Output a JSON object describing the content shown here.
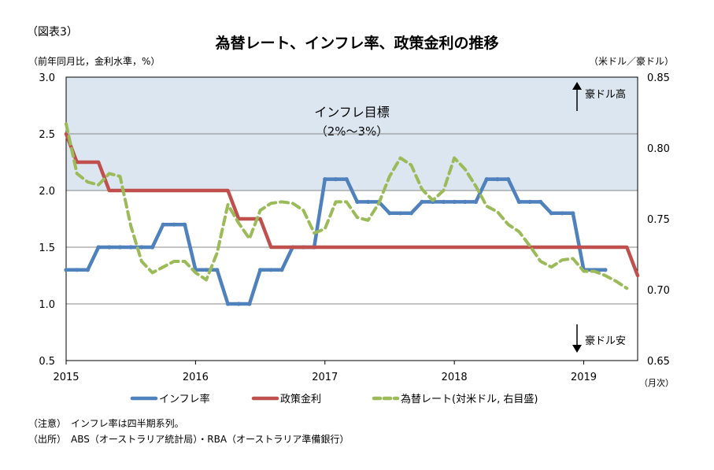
{
  "figure_label": "（図表3）",
  "title": "為替レート、インフレ率、政策金利の推移",
  "unit_left": "（前年同月比，金利水準，%）",
  "unit_right": "（米ドル／豪ドル）",
  "x_unit": "（月次）",
  "note": "（注意）　インフレ率は四半期系列。",
  "source": "（出所）　ABS（オーストラリア統計局）・RBA（オーストラリア準備銀行）",
  "colors": {
    "inflation": "#4f81bd",
    "policy_rate": "#c0504d",
    "fx": "#9bbb59",
    "target_band": "#dce6f1"
  },
  "chart_data": {
    "type": "line",
    "x_start": "2015-01",
    "x_end": "2019-06",
    "x_ticks": [
      "2015",
      "2016",
      "2017",
      "2018",
      "2019"
    ],
    "ylim": [
      0.5,
      3.0
    ],
    "yticks": [
      "0.5",
      "1.0",
      "1.5",
      "2.0",
      "2.5",
      "3.0"
    ],
    "y2lim": [
      0.65,
      0.85
    ],
    "y2ticks": [
      "0.65",
      "0.70",
      "0.75",
      "0.80",
      "0.85"
    ],
    "grid": true,
    "legend_position": "bottom",
    "band": {
      "from": 2.0,
      "to": 3.0,
      "label_line1": "インフレ目標",
      "label_line2": "（2%～3%）"
    },
    "annotations": {
      "up": "豪ドル高",
      "down": "豪ドル安"
    },
    "series": [
      {
        "name": "インフレ率",
        "axis": "left",
        "style": "solid",
        "marker": true,
        "x": [
          "2015-01",
          "2015-02",
          "2015-03",
          "2015-04",
          "2015-05",
          "2015-06",
          "2015-07",
          "2015-08",
          "2015-09",
          "2015-10",
          "2015-11",
          "2015-12",
          "2016-01",
          "2016-02",
          "2016-03",
          "2016-04",
          "2016-05",
          "2016-06",
          "2016-07",
          "2016-08",
          "2016-09",
          "2016-10",
          "2016-11",
          "2016-12",
          "2017-01",
          "2017-02",
          "2017-03",
          "2017-04",
          "2017-05",
          "2017-06",
          "2017-07",
          "2017-08",
          "2017-09",
          "2017-10",
          "2017-11",
          "2017-12",
          "2018-01",
          "2018-02",
          "2018-03",
          "2018-04",
          "2018-05",
          "2018-06",
          "2018-07",
          "2018-08",
          "2018-09",
          "2018-10",
          "2018-11",
          "2018-12",
          "2019-01",
          "2019-02",
          "2019-03"
        ],
        "values": [
          1.3,
          1.3,
          1.3,
          1.5,
          1.5,
          1.5,
          1.5,
          1.5,
          1.5,
          1.7,
          1.7,
          1.7,
          1.3,
          1.3,
          1.3,
          1.0,
          1.0,
          1.0,
          1.3,
          1.3,
          1.3,
          1.5,
          1.5,
          1.5,
          2.1,
          2.1,
          2.1,
          1.9,
          1.9,
          1.9,
          1.8,
          1.8,
          1.8,
          1.9,
          1.9,
          1.9,
          1.9,
          1.9,
          1.9,
          2.1,
          2.1,
          2.1,
          1.9,
          1.9,
          1.9,
          1.8,
          1.8,
          1.8,
          1.3,
          1.3,
          1.3
        ]
      },
      {
        "name": "政策金利",
        "axis": "left",
        "style": "solid",
        "marker": false,
        "x": [
          "2015-01",
          "2015-02",
          "2015-03",
          "2015-04",
          "2015-05",
          "2015-06",
          "2015-07",
          "2015-08",
          "2015-09",
          "2015-10",
          "2015-11",
          "2015-12",
          "2016-01",
          "2016-02",
          "2016-03",
          "2016-04",
          "2016-05",
          "2016-06",
          "2016-07",
          "2016-08",
          "2016-09",
          "2016-10",
          "2016-11",
          "2016-12",
          "2017-01",
          "2017-02",
          "2017-03",
          "2017-04",
          "2017-05",
          "2017-06",
          "2017-07",
          "2017-08",
          "2017-09",
          "2017-10",
          "2017-11",
          "2017-12",
          "2018-01",
          "2018-02",
          "2018-03",
          "2018-04",
          "2018-05",
          "2018-06",
          "2018-07",
          "2018-08",
          "2018-09",
          "2018-10",
          "2018-11",
          "2018-12",
          "2019-01",
          "2019-02",
          "2019-03",
          "2019-04",
          "2019-05",
          "2019-06"
        ],
        "values": [
          2.5,
          2.25,
          2.25,
          2.25,
          2.0,
          2.0,
          2.0,
          2.0,
          2.0,
          2.0,
          2.0,
          2.0,
          2.0,
          2.0,
          2.0,
          2.0,
          1.75,
          1.75,
          1.75,
          1.5,
          1.5,
          1.5,
          1.5,
          1.5,
          1.5,
          1.5,
          1.5,
          1.5,
          1.5,
          1.5,
          1.5,
          1.5,
          1.5,
          1.5,
          1.5,
          1.5,
          1.5,
          1.5,
          1.5,
          1.5,
          1.5,
          1.5,
          1.5,
          1.5,
          1.5,
          1.5,
          1.5,
          1.5,
          1.5,
          1.5,
          1.5,
          1.5,
          1.5,
          1.25
        ]
      },
      {
        "name": "為替レート(対米ドル, 右目盛)",
        "axis": "right",
        "style": "dashed",
        "marker": false,
        "x": [
          "2015-01",
          "2015-02",
          "2015-03",
          "2015-04",
          "2015-05",
          "2015-06",
          "2015-07",
          "2015-08",
          "2015-09",
          "2015-10",
          "2015-11",
          "2015-12",
          "2016-01",
          "2016-02",
          "2016-03",
          "2016-04",
          "2016-05",
          "2016-06",
          "2016-07",
          "2016-08",
          "2016-09",
          "2016-10",
          "2016-11",
          "2016-12",
          "2017-01",
          "2017-02",
          "2017-03",
          "2017-04",
          "2017-05",
          "2017-06",
          "2017-07",
          "2017-08",
          "2017-09",
          "2017-10",
          "2017-11",
          "2017-12",
          "2018-01",
          "2018-02",
          "2018-03",
          "2018-04",
          "2018-05",
          "2018-06",
          "2018-07",
          "2018-08",
          "2018-09",
          "2018-10",
          "2018-11",
          "2018-12",
          "2019-01",
          "2019-02",
          "2019-03",
          "2019-04",
          "2019-05"
        ],
        "values": [
          0.817,
          0.782,
          0.776,
          0.774,
          0.782,
          0.78,
          0.745,
          0.72,
          0.712,
          0.716,
          0.72,
          0.72,
          0.712,
          0.707,
          0.726,
          0.76,
          0.747,
          0.736,
          0.756,
          0.761,
          0.762,
          0.761,
          0.756,
          0.74,
          0.743,
          0.762,
          0.762,
          0.751,
          0.749,
          0.761,
          0.78,
          0.793,
          0.788,
          0.771,
          0.763,
          0.77,
          0.793,
          0.785,
          0.773,
          0.759,
          0.755,
          0.746,
          0.741,
          0.731,
          0.72,
          0.716,
          0.721,
          0.722,
          0.713,
          0.713,
          0.71,
          0.706,
          0.701
        ]
      }
    ]
  }
}
